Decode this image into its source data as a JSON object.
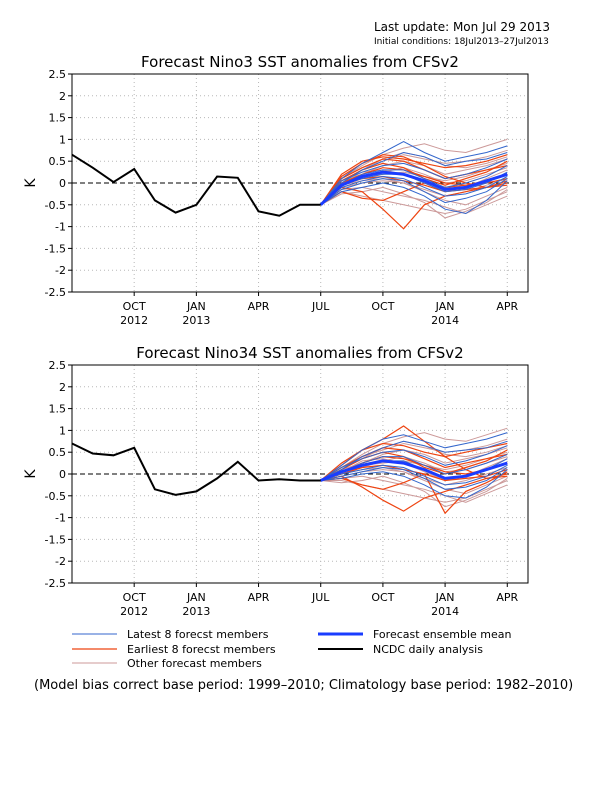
{
  "header": {
    "last_update": "Last update: Mon Jul 29 2013",
    "initial_conditions": "Initial conditions: 18Jul2013–27Jul2013"
  },
  "legend": {
    "items": [
      {
        "key": "latest",
        "label": "Latest 8 forecst members",
        "color": "#3366cc"
      },
      {
        "key": "earliest",
        "label": "Earliest 8 forecst members",
        "color": "#ee4411"
      },
      {
        "key": "other",
        "label": "Other forecast members",
        "color": "#cc9999"
      },
      {
        "key": "mean",
        "label": "Forecast ensemble mean",
        "color": "#1a3cff"
      },
      {
        "key": "obs",
        "label": "NCDC daily analysis",
        "color": "#000000"
      }
    ]
  },
  "footnote": "(Model bias correct base period: 1999–2010; Climatology base period: 1982–2010)",
  "chart_data": [
    {
      "type": "line",
      "title": "Forecast Nino3 SST anomalies from CFSv2",
      "ylabel": "K",
      "ylim": [
        -2.5,
        2.5
      ],
      "yticks": [
        "2.5",
        "2",
        "1.5",
        "1",
        "0.5",
        "0",
        "-0.5",
        "-1",
        "-1.5",
        "-2",
        "-2.5"
      ],
      "xlim": [
        "2012-07",
        "2014-05"
      ],
      "xticks": [
        {
          "month": "2012-10",
          "label": "OCT",
          "year": "2012"
        },
        {
          "month": "2013-01",
          "label": "JAN",
          "year": "2013"
        },
        {
          "month": "2013-04",
          "label": "APR",
          "year": ""
        },
        {
          "month": "2013-07",
          "label": "JUL",
          "year": ""
        },
        {
          "month": "2013-10",
          "label": "OCT",
          "year": ""
        },
        {
          "month": "2014-01",
          "label": "JAN",
          "year": "2014"
        },
        {
          "month": "2014-04",
          "label": "APR",
          "year": ""
        }
      ],
      "grid": true,
      "observed": {
        "name": "NCDC daily analysis",
        "x": [
          "2012-07",
          "2012-08",
          "2012-09",
          "2012-10",
          "2012-11",
          "2012-12",
          "2013-01",
          "2013-02",
          "2013-03",
          "2013-04",
          "2013-05",
          "2013-06",
          "2013-07"
        ],
        "y": [
          0.65,
          0.35,
          0.02,
          0.32,
          -0.4,
          -0.68,
          -0.5,
          0.15,
          0.12,
          -0.65,
          -0.75,
          -0.5,
          -0.5
        ]
      },
      "forecast_months": [
        "2013-07",
        "2013-08",
        "2013-09",
        "2013-10",
        "2013-11",
        "2013-12",
        "2014-01",
        "2014-02",
        "2014-03",
        "2014-04"
      ],
      "ensemble_mean": {
        "name": "Forecast ensemble mean",
        "y": [
          -0.5,
          -0.05,
          0.15,
          0.25,
          0.2,
          0.05,
          -0.15,
          -0.1,
          0.05,
          0.2
        ]
      },
      "latest_members": [
        [
          -0.5,
          0.1,
          0.45,
          0.7,
          0.95,
          0.7,
          0.5,
          0.6,
          0.7,
          0.85
        ],
        [
          -0.5,
          0.0,
          0.3,
          0.5,
          0.7,
          0.6,
          0.4,
          0.5,
          0.55,
          0.7
        ],
        [
          -0.5,
          -0.05,
          0.2,
          0.3,
          0.3,
          0.1,
          -0.1,
          0.0,
          0.15,
          0.4
        ],
        [
          -0.5,
          -0.1,
          0.05,
          0.15,
          0.1,
          -0.1,
          -0.3,
          -0.25,
          -0.1,
          0.15
        ],
        [
          -0.5,
          -0.2,
          -0.1,
          0.0,
          -0.1,
          -0.3,
          -0.6,
          -0.7,
          -0.4,
          0.05
        ],
        [
          -0.5,
          0.05,
          0.25,
          0.4,
          0.45,
          0.3,
          0.1,
          0.2,
          0.35,
          0.55
        ],
        [
          -0.5,
          -0.15,
          0.0,
          0.1,
          0.05,
          -0.2,
          -0.45,
          -0.35,
          -0.2,
          0.1
        ],
        [
          -0.5,
          -0.05,
          0.1,
          0.2,
          0.2,
          0.0,
          -0.2,
          -0.15,
          0.0,
          0.25
        ]
      ],
      "earliest_members": [
        [
          -0.5,
          0.2,
          0.5,
          0.6,
          0.55,
          0.45,
          0.35,
          0.4,
          0.5,
          0.65
        ],
        [
          -0.5,
          0.1,
          0.35,
          0.55,
          0.5,
          0.3,
          0.1,
          0.2,
          0.3,
          0.4
        ],
        [
          -0.5,
          0.0,
          0.2,
          0.35,
          0.3,
          0.15,
          0.0,
          -0.05,
          0.05,
          0.2
        ],
        [
          -0.5,
          -0.1,
          -0.2,
          -0.6,
          -1.05,
          -0.5,
          -0.3,
          -0.2,
          -0.1,
          0.0
        ],
        [
          -0.5,
          -0.05,
          0.1,
          0.15,
          0.05,
          -0.05,
          -0.2,
          -0.15,
          -0.1,
          0.05
        ],
        [
          -0.5,
          0.15,
          0.45,
          0.65,
          0.6,
          0.4,
          0.15,
          0.0,
          -0.1,
          -0.05
        ],
        [
          -0.5,
          -0.2,
          -0.35,
          -0.4,
          -0.2,
          0.0,
          -0.1,
          -0.05,
          0.0,
          0.1
        ],
        [
          -0.5,
          0.05,
          0.3,
          0.45,
          0.35,
          0.1,
          -0.05,
          0.1,
          0.25,
          0.5
        ]
      ],
      "other_members": [
        [
          -0.5,
          0.1,
          0.4,
          0.65,
          0.8,
          0.9,
          0.75,
          0.7,
          0.85,
          1.0
        ],
        [
          -0.5,
          0.05,
          0.2,
          0.4,
          0.5,
          0.4,
          0.2,
          0.3,
          0.4,
          0.55
        ],
        [
          -0.5,
          -0.1,
          0.0,
          0.05,
          0.0,
          -0.2,
          -0.4,
          -0.5,
          -0.3,
          -0.1
        ],
        [
          -0.5,
          -0.2,
          -0.3,
          -0.4,
          -0.5,
          -0.6,
          -0.7,
          -0.6,
          -0.4,
          -0.2
        ],
        [
          -0.5,
          0.0,
          0.25,
          0.3,
          0.2,
          0.0,
          -0.2,
          -0.1,
          0.1,
          0.3
        ],
        [
          -0.5,
          0.1,
          0.35,
          0.5,
          0.65,
          0.55,
          0.45,
          0.5,
          0.6,
          0.75
        ],
        [
          -0.5,
          -0.15,
          -0.1,
          -0.2,
          -0.3,
          -0.4,
          -0.55,
          -0.7,
          -0.5,
          -0.3
        ],
        [
          -0.5,
          0.0,
          0.15,
          0.2,
          0.25,
          0.15,
          0.05,
          0.15,
          0.3,
          0.45
        ],
        [
          -0.5,
          -0.05,
          0.05,
          0.1,
          0.0,
          -0.15,
          -0.3,
          -0.2,
          -0.05,
          0.1
        ],
        [
          -0.5,
          0.05,
          0.3,
          0.55,
          0.7,
          0.6,
          0.4,
          0.35,
          0.45,
          0.6
        ],
        [
          -0.5,
          -0.25,
          -0.2,
          -0.1,
          -0.25,
          -0.45,
          -0.8,
          -0.65,
          -0.45,
          -0.15
        ],
        [
          -0.5,
          0.0,
          0.1,
          0.25,
          0.35,
          0.2,
          0.0,
          0.05,
          0.2,
          0.35
        ]
      ]
    },
    {
      "type": "line",
      "title": "Forecast Nino34 SST anomalies from CFSv2",
      "ylabel": "K",
      "ylim": [
        -2.5,
        2.5
      ],
      "yticks": [
        "2.5",
        "2",
        "1.5",
        "1",
        "0.5",
        "0",
        "-0.5",
        "-1",
        "-1.5",
        "-2",
        "-2.5"
      ],
      "xlim": [
        "2012-07",
        "2014-05"
      ],
      "xticks": [
        {
          "month": "2012-10",
          "label": "OCT",
          "year": "2012"
        },
        {
          "month": "2013-01",
          "label": "JAN",
          "year": "2013"
        },
        {
          "month": "2013-04",
          "label": "APR",
          "year": ""
        },
        {
          "month": "2013-07",
          "label": "JUL",
          "year": ""
        },
        {
          "month": "2013-10",
          "label": "OCT",
          "year": ""
        },
        {
          "month": "2014-01",
          "label": "JAN",
          "year": "2014"
        },
        {
          "month": "2014-04",
          "label": "APR",
          "year": ""
        }
      ],
      "grid": true,
      "observed": {
        "name": "NCDC daily analysis",
        "x": [
          "2012-07",
          "2012-08",
          "2012-09",
          "2012-10",
          "2012-11",
          "2012-12",
          "2013-01",
          "2013-02",
          "2013-03",
          "2013-04",
          "2013-05",
          "2013-06",
          "2013-07"
        ],
        "y": [
          0.7,
          0.47,
          0.43,
          0.6,
          -0.35,
          -0.48,
          -0.4,
          -0.1,
          0.28,
          -0.15,
          -0.12,
          -0.15,
          -0.15
        ]
      },
      "forecast_months": [
        "2013-07",
        "2013-08",
        "2013-09",
        "2013-10",
        "2013-11",
        "2013-12",
        "2014-01",
        "2014-02",
        "2014-03",
        "2014-04"
      ],
      "ensemble_mean": {
        "name": "Forecast ensemble mean",
        "y": [
          -0.15,
          0.05,
          0.2,
          0.3,
          0.25,
          0.1,
          -0.1,
          -0.05,
          0.1,
          0.25
        ]
      },
      "latest_members": [
        [
          -0.15,
          0.2,
          0.55,
          0.8,
          0.9,
          0.75,
          0.6,
          0.7,
          0.8,
          0.95
        ],
        [
          -0.15,
          0.1,
          0.4,
          0.6,
          0.75,
          0.65,
          0.5,
          0.55,
          0.6,
          0.75
        ],
        [
          -0.15,
          0.05,
          0.25,
          0.4,
          0.4,
          0.2,
          0.0,
          0.1,
          0.25,
          0.45
        ],
        [
          -0.15,
          0.0,
          0.1,
          0.2,
          0.15,
          -0.05,
          -0.25,
          -0.2,
          -0.05,
          0.2
        ],
        [
          -0.15,
          -0.1,
          0.0,
          0.05,
          -0.05,
          -0.25,
          -0.5,
          -0.55,
          -0.3,
          0.1
        ],
        [
          -0.15,
          0.15,
          0.35,
          0.5,
          0.55,
          0.4,
          0.2,
          0.3,
          0.45,
          0.65
        ],
        [
          -0.15,
          -0.05,
          0.05,
          0.15,
          0.1,
          -0.1,
          -0.35,
          -0.3,
          -0.15,
          0.15
        ],
        [
          -0.15,
          0.05,
          0.2,
          0.3,
          0.3,
          0.1,
          -0.1,
          -0.05,
          0.1,
          0.35
        ]
      ],
      "earliest_members": [
        [
          -0.15,
          0.25,
          0.55,
          0.7,
          0.65,
          0.5,
          0.4,
          0.5,
          0.6,
          0.7
        ],
        [
          -0.15,
          0.15,
          0.4,
          0.6,
          0.55,
          0.35,
          0.15,
          0.25,
          0.35,
          0.45
        ],
        [
          -0.15,
          0.05,
          0.25,
          0.4,
          0.35,
          0.2,
          0.05,
          0.0,
          0.1,
          0.25
        ],
        [
          -0.15,
          -0.05,
          -0.3,
          -0.6,
          -0.85,
          -0.55,
          -0.4,
          -0.25,
          -0.1,
          0.0
        ],
        [
          -0.15,
          0.0,
          0.15,
          0.2,
          0.1,
          0.0,
          -0.15,
          -0.1,
          -0.05,
          0.1
        ],
        [
          -0.15,
          0.2,
          0.55,
          0.8,
          1.1,
          0.75,
          0.4,
          0.1,
          -0.1,
          -0.05
        ],
        [
          -0.15,
          -0.1,
          -0.25,
          -0.35,
          -0.2,
          0.0,
          -0.9,
          -0.4,
          -0.2,
          0.05
        ],
        [
          -0.15,
          0.1,
          0.35,
          0.5,
          0.4,
          0.15,
          0.0,
          0.15,
          0.3,
          0.55
        ]
      ],
      "other_members": [
        [
          -0.15,
          0.15,
          0.45,
          0.7,
          0.85,
          0.95,
          0.8,
          0.75,
          0.9,
          1.05
        ],
        [
          -0.15,
          0.1,
          0.25,
          0.45,
          0.55,
          0.45,
          0.25,
          0.35,
          0.45,
          0.6
        ],
        [
          -0.15,
          -0.05,
          0.05,
          0.1,
          0.05,
          -0.15,
          -0.35,
          -0.45,
          -0.25,
          -0.05
        ],
        [
          -0.15,
          -0.15,
          -0.25,
          -0.35,
          -0.45,
          -0.55,
          -0.65,
          -0.55,
          -0.35,
          -0.15
        ],
        [
          -0.15,
          0.05,
          0.3,
          0.35,
          0.25,
          0.05,
          -0.15,
          -0.05,
          0.15,
          0.35
        ],
        [
          -0.15,
          0.15,
          0.4,
          0.55,
          0.7,
          0.6,
          0.5,
          0.55,
          0.65,
          0.8
        ],
        [
          -0.15,
          -0.1,
          -0.05,
          -0.15,
          -0.25,
          -0.35,
          -0.5,
          -0.65,
          -0.45,
          -0.25
        ],
        [
          -0.15,
          0.05,
          0.2,
          0.25,
          0.3,
          0.2,
          0.1,
          0.2,
          0.35,
          0.5
        ],
        [
          -0.15,
          0.0,
          0.1,
          0.15,
          0.05,
          -0.1,
          -0.25,
          -0.15,
          0.0,
          0.15
        ],
        [
          -0.15,
          0.1,
          0.35,
          0.6,
          0.75,
          0.65,
          0.45,
          0.4,
          0.5,
          0.65
        ],
        [
          -0.15,
          -0.2,
          -0.15,
          -0.05,
          -0.2,
          -0.4,
          -0.75,
          -0.6,
          -0.4,
          -0.1
        ],
        [
          -0.15,
          0.05,
          0.15,
          0.3,
          0.4,
          0.25,
          0.05,
          0.1,
          0.25,
          0.4
        ]
      ]
    }
  ]
}
